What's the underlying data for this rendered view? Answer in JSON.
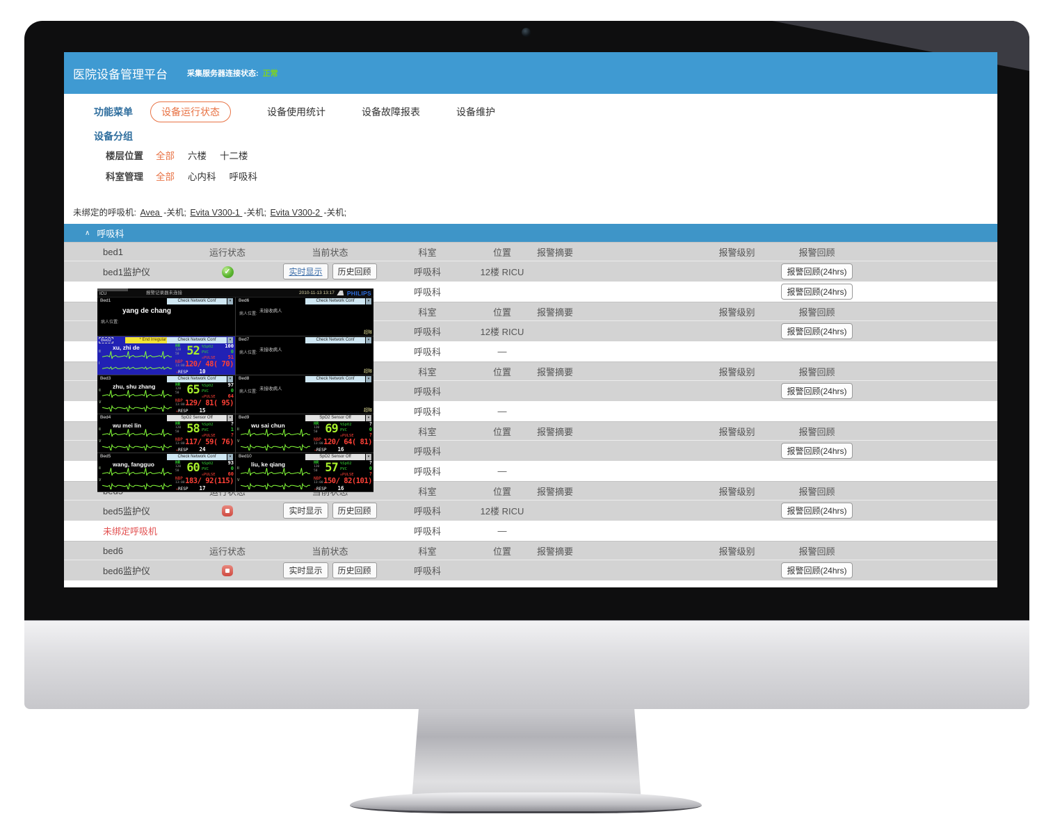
{
  "app": {
    "title": "医院设备管理平台",
    "server_status_label": "采集服务器连接状态:",
    "server_status_value": "正常"
  },
  "nav": {
    "items": [
      {
        "key": "function-menu",
        "label": "功能菜单",
        "style": "blue"
      },
      {
        "key": "device-run-status",
        "label": "设备运行状态",
        "style": "pill"
      },
      {
        "key": "usage-stats",
        "label": "设备使用统计",
        "style": "plain"
      },
      {
        "key": "fault-report",
        "label": "设备故障报表",
        "style": "plain"
      },
      {
        "key": "maintenance",
        "label": "设备维护",
        "style": "plain"
      }
    ]
  },
  "grouping": {
    "title": "设备分组",
    "filters": [
      {
        "key": "floor",
        "label": "楼层位置",
        "options": [
          {
            "label": "全部",
            "selected": true
          },
          {
            "label": "六楼",
            "selected": false
          },
          {
            "label": "十二楼",
            "selected": false
          }
        ]
      },
      {
        "key": "department",
        "label": "科室管理",
        "options": [
          {
            "label": "全部",
            "selected": true
          },
          {
            "label": "心内科",
            "selected": false
          },
          {
            "label": "呼吸科",
            "selected": false
          }
        ]
      }
    ]
  },
  "unbound_line": {
    "prefix": "未绑定的呼吸机:",
    "items": [
      {
        "name": "Avea",
        "suffix": "-关机;"
      },
      {
        "name": "Evita V300-1",
        "suffix": "-关机;"
      },
      {
        "name": "Evita V300-2",
        "suffix": "-关机;"
      }
    ]
  },
  "section": {
    "title": "呼吸科"
  },
  "table": {
    "columns": {
      "status": "运行状态",
      "current": "当前状态",
      "dept": "科室",
      "loc": "位置",
      "summary": "报警摘要",
      "level": "报警级别",
      "review": "报警回顾"
    },
    "buttons": {
      "realtime": "实时显示",
      "history": "历史回顾",
      "review24": "报警回顾(24hrs)"
    },
    "rows": [
      {
        "kind": "group",
        "name": "bed1"
      },
      {
        "kind": "device",
        "name": "bed1监护仪",
        "status": "running",
        "buttons": true,
        "rt_active": true,
        "dept": "呼吸科",
        "loc": "12楼 RICU",
        "review": true
      },
      {
        "kind": "vent",
        "name": "",
        "dept": "呼吸科",
        "loc": "",
        "review": true
      },
      {
        "kind": "group",
        "name": ""
      },
      {
        "kind": "device",
        "name": "",
        "status": "",
        "buttons": false,
        "dept": "呼吸科",
        "loc": "12楼 RICU",
        "review": true
      },
      {
        "kind": "vent",
        "name": "",
        "dept": "呼吸科",
        "loc": "—",
        "review": false
      },
      {
        "kind": "group",
        "name": ""
      },
      {
        "kind": "device",
        "name": "",
        "status": "",
        "buttons": false,
        "dept": "呼吸科",
        "loc": "",
        "review": true
      },
      {
        "kind": "vent",
        "name": "",
        "dept": "呼吸科",
        "loc": "—",
        "review": false
      },
      {
        "kind": "group",
        "name": ""
      },
      {
        "kind": "device",
        "name": "",
        "status": "",
        "buttons": false,
        "dept": "呼吸科",
        "loc": "",
        "review": true
      },
      {
        "kind": "vent",
        "name": "",
        "dept": "呼吸科",
        "loc": "—",
        "review": false
      },
      {
        "kind": "group",
        "name": "bed5"
      },
      {
        "kind": "device",
        "name": "bed5监护仪",
        "status": "stopped",
        "buttons": true,
        "rt_active": false,
        "dept": "呼吸科",
        "loc": "12楼 RICU",
        "review": true
      },
      {
        "kind": "vent",
        "name": "未绑定呼吸机",
        "alert": true,
        "dept": "呼吸科",
        "loc": "—",
        "review": false
      },
      {
        "kind": "group",
        "name": "bed6"
      },
      {
        "kind": "device",
        "name": "bed6监护仪",
        "status": "stopped",
        "buttons": true,
        "rt_active": false,
        "dept": "呼吸科",
        "loc": "",
        "review": true
      }
    ]
  },
  "monitor": {
    "topbar": {
      "unit": "ICU",
      "message": "报警记录器未连接",
      "datetime": "2010-11-13 13:17",
      "brand": "PHILIPS"
    },
    "labels": {
      "hr": "HR",
      "hr_high": "120",
      "hr_low": "50",
      "spo2": "%SpO2",
      "pvc": "PVC",
      "pulse": "PULSE",
      "nbp": "NBP",
      "nbp_time": "13:00",
      "resp": "RESP",
      "alarm_off_glyph": "☒",
      "patient_loc": "病人位置:",
      "no_patient": "未接收病人",
      "conf": "Check Network Conf"
    },
    "beds": [
      {
        "id": "Bed1",
        "kind": "name-only",
        "conf": true,
        "name": "yang de chang"
      },
      {
        "id": "Bed2",
        "kind": "vitals",
        "selected": true,
        "banner": "* End Irregular HR",
        "banner_style": "yellow",
        "conf": true,
        "name": "xu, zhi de",
        "leads": [
          "II",
          "I"
        ],
        "hr": "52",
        "spo2": "100",
        "pvc": "0",
        "pulse": "51",
        "nbp": "120/ 48( 70)",
        "resp": "10"
      },
      {
        "id": "Bed3",
        "kind": "vitals",
        "conf": true,
        "name": "zhu, shu zhang",
        "leads": [
          "II",
          "V"
        ],
        "hr": "65",
        "spo2": "97",
        "pvc": "0",
        "pulse": "64",
        "nbp": "129/ 81( 95)",
        "resp": "15"
      },
      {
        "id": "Bed4",
        "kind": "vitals",
        "banner": "SpO2  Sensor Off",
        "banner_style": "gray-right",
        "name": "wu mei lin",
        "leads": [
          "II",
          "V"
        ],
        "hr": "58",
        "spo2": "?",
        "pvc": "1",
        "pulse": "?",
        "nbp": "117/ 59( 76)",
        "resp": "24"
      },
      {
        "id": "Bed5",
        "kind": "vitals",
        "conf": true,
        "name": "wang, fangguo",
        "leads": [
          "II",
          "V"
        ],
        "hr": "60",
        "spo2": "93",
        "pvc": "0",
        "pulse": "60",
        "nbp": "183/ 92(115)",
        "resp": "17"
      },
      {
        "id": "Bed6",
        "kind": "empty",
        "conf": true,
        "corner": "超限"
      },
      {
        "id": "Bed7",
        "kind": "empty",
        "conf": true,
        "corner": "超限"
      },
      {
        "id": "Bed8",
        "kind": "empty",
        "conf": true,
        "corner": "超限"
      },
      {
        "id": "Bed9",
        "kind": "vitals",
        "banner": "SpO2  Sensor Off",
        "banner_style": "gray-right",
        "name": "wu sai chun",
        "leads": [
          "II",
          "V"
        ],
        "hr": "69",
        "spo2": "?",
        "pvc": "0",
        "pulse": "?",
        "nbp": "120/ 64( 81)",
        "resp": "16"
      },
      {
        "id": "Bed10",
        "kind": "vitals",
        "banner": "SpO2  Sensor Off",
        "banner_style": "gray-right",
        "name": "liu, ke qiang",
        "leads": [
          "II",
          "V"
        ],
        "hr": "57",
        "spo2": "?",
        "pvc": "0",
        "pulse": "?",
        "nbp": "150/ 82(101)",
        "resp": "16"
      }
    ]
  },
  "colors": {
    "header_blue": "#3f9ad2",
    "section_blue": "#3e95c8",
    "accent_orange": "#e87244",
    "link_blue": "#2f6e9e",
    "status_ok_green": "#7ed321",
    "running_green": "#5cb631",
    "stopped_red": "#cf4a41",
    "alert_red": "#e25050",
    "ecg_green": "#86ff3a",
    "monitor_selected_blue": "#2121b4",
    "philips_blue": "#2e6fe0",
    "value_red": "#ff4036"
  }
}
